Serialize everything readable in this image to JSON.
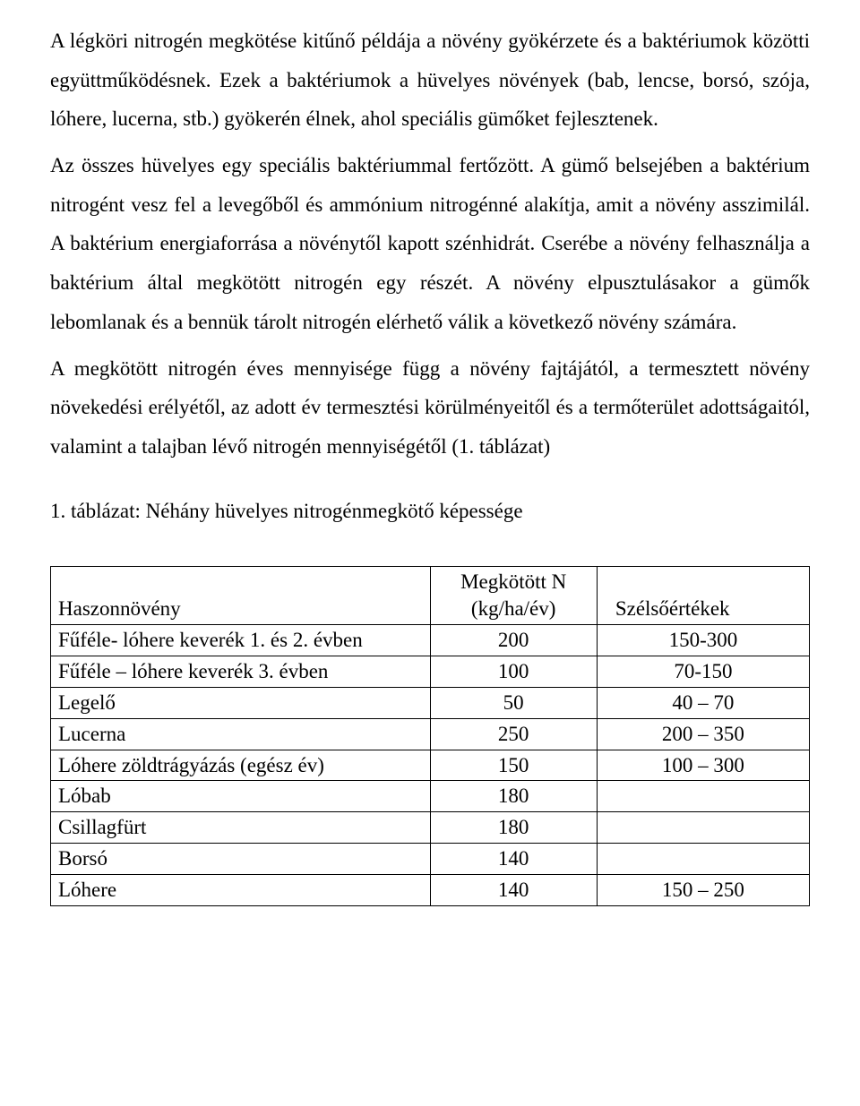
{
  "paragraphs": {
    "p1": "A légköri nitrogén megkötése kitűnő példája a növény gyökérzete és a baktériumok közötti együttműködésnek. Ezek a baktériumok a hüvelyes növények (bab, lencse, borsó, szója, lóhere, lucerna, stb.) gyökerén élnek, ahol speciális gümőket fejlesztenek.",
    "p2": "Az összes hüvelyes egy speciális baktériummal fertőzött. A gümő belsejében a baktérium nitrogént vesz fel a levegőből és ammónium nitrogénné alakítja, amit a növény asszimilál. A baktérium energiaforrása a növénytől kapott szénhidrát. Cserébe a növény felhasználja a baktérium által megkötött nitrogén egy részét. A növény elpusztulásakor a gümők lebomlanak és a bennük tárolt nitrogén elérhető válik a következő növény számára.",
    "p3": "A megkötött nitrogén éves mennyisége függ a növény fajtájától, a termesztett növény növekedési erélyétől, az adott év termesztési körülményeitől és a termőterület adottságaitól, valamint a talajban lévő nitrogén mennyiségétől (1. táblázat)"
  },
  "caption": "1. táblázat: Néhány hüvelyes nitrogénmegkötő képessége",
  "table": {
    "headers": {
      "crop": "Haszonnövény",
      "fixed_line1": "Megkötött N",
      "fixed_line2": "(kg/ha/év)",
      "extremes": "Szélsőértékek"
    },
    "rows": [
      {
        "crop": "Fűféle- lóhere keverék 1. és 2. évben",
        "fixed": "200",
        "extremes": "150-300"
      },
      {
        "crop": "Fűféle – lóhere keverék 3. évben",
        "fixed": "100",
        "extremes": "70-150"
      },
      {
        "crop": "Legelő",
        "fixed": "50",
        "extremes": "40 – 70"
      },
      {
        "crop": "Lucerna",
        "fixed": "250",
        "extremes": "200 – 350"
      },
      {
        "crop": "Lóhere zöldtrágyázás (egész év)",
        "fixed": "150",
        "extremes": "100 – 300"
      },
      {
        "crop": "Lóbab",
        "fixed": "180",
        "extremes": ""
      },
      {
        "crop": "Csillagfürt",
        "fixed": "180",
        "extremes": ""
      },
      {
        "crop": "Borsó",
        "fixed": "140",
        "extremes": ""
      },
      {
        "crop": "Lóhere",
        "fixed": "140",
        "extremes": "150 – 250"
      }
    ],
    "col_widths": {
      "crop": "50%",
      "fixed": "22%",
      "extremes": "28%"
    }
  }
}
